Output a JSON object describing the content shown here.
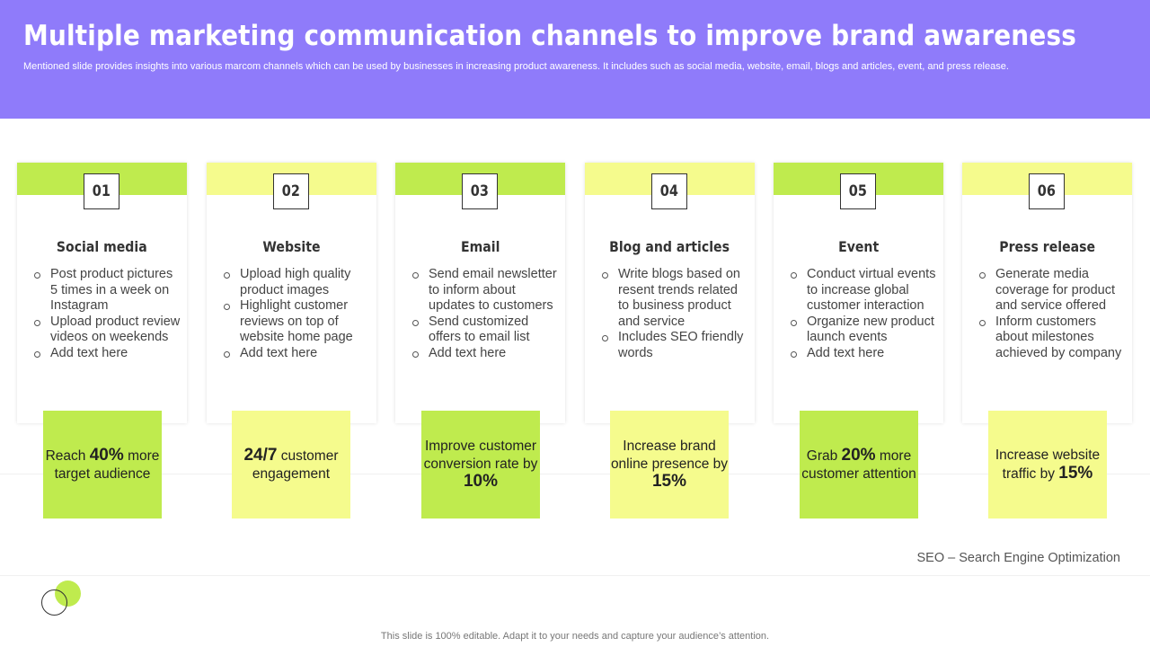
{
  "header": {
    "title": "Multiple marketing communication channels to improve brand awareness",
    "subtitle": "Mentioned slide provides insights into various marcom channels which can be used by businesses in increasing product awareness. It includes such as social media, website, email, blogs and articles, event, and press release."
  },
  "colors": {
    "header_bg": "#8f7bfa",
    "accent_green": "#bfeb4e",
    "accent_yellow": "#f5fb8d"
  },
  "channels": [
    {
      "number": "01",
      "title": "Social media",
      "bullets": [
        "Post product pictures 5 times in a week on Instagram",
        "Upload product review videos on weekends",
        "Add text here"
      ],
      "highlight": {
        "pre": "Reach ",
        "bold": "40%",
        "post": " more target audience"
      }
    },
    {
      "number": "02",
      "title": "Website",
      "bullets": [
        "Upload high quality product images",
        "Highlight customer reviews on top of website home page",
        "Add text here"
      ],
      "highlight": {
        "pre": "",
        "bold": "24/7",
        "post": " customer engagement"
      }
    },
    {
      "number": "03",
      "title": "Email",
      "bullets": [
        "Send email newsletter to inform about updates to customers",
        "Send customized offers to email list",
        "Add text here"
      ],
      "highlight": {
        "pre": "Improve customer conversion rate by ",
        "bold": "10%",
        "post": ""
      }
    },
    {
      "number": "04",
      "title": "Blog and articles",
      "bullets": [
        "Write blogs based on resent trends related to business product and service",
        "Includes SEO friendly words"
      ],
      "highlight": {
        "pre": "Increase brand online presence by ",
        "bold": "15%",
        "post": ""
      }
    },
    {
      "number": "05",
      "title": "Event",
      "bullets": [
        "Conduct virtual events to increase global customer interaction",
        "Organize new product launch events",
        "Add text here"
      ],
      "highlight": {
        "pre": "Grab ",
        "bold": "20%",
        "post": " more customer attention"
      }
    },
    {
      "number": "06",
      "title": "Press release",
      "bullets": [
        "Generate media coverage for product and service offered",
        "Inform customers about milestones achieved by company"
      ],
      "highlight": {
        "pre": "Increase website traffic by ",
        "bold": "15%",
        "post": ""
      }
    }
  ],
  "footnote": "SEO – Search Engine Optimization",
  "bottom_note": "This slide is 100% editable. Adapt it to your needs and capture your audience’s attention."
}
